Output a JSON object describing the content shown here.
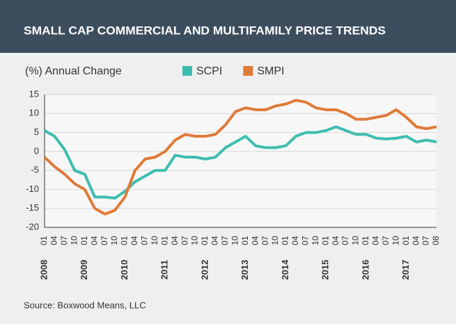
{
  "chart_data": {
    "type": "line",
    "title": "SMALL CAP COMMERCIAL AND MULTIFAMILY PRICE TRENDS",
    "y_label": "(%) Annual Change",
    "source": "Source: Boxwood Means, LLC",
    "categories": [
      "01",
      "04",
      "07",
      "10",
      "01",
      "04",
      "07",
      "10",
      "01",
      "04",
      "07",
      "10",
      "01",
      "04",
      "07",
      "10",
      "01",
      "04",
      "07",
      "10",
      "01",
      "04",
      "07",
      "10",
      "01",
      "04",
      "07",
      "10",
      "01",
      "04",
      "07",
      "10",
      "01",
      "04",
      "07",
      "10",
      "01",
      "04",
      "07",
      "08"
    ],
    "years": [
      "2008",
      "2009",
      "2010",
      "2011",
      "2012",
      "2013",
      "2014",
      "2015",
      "2016",
      "2017"
    ],
    "ylim": [
      -20,
      15
    ],
    "yticks": [
      15,
      10,
      5,
      0,
      -5,
      -10,
      -15,
      -20
    ],
    "grid": true,
    "series": [
      {
        "name": "SCPI",
        "color": "#3dbdb0",
        "values": [
          5.5,
          4,
          0.5,
          -5,
          -6,
          -12,
          -12,
          -12.3,
          -10.5,
          -8,
          -6.5,
          -5,
          -5,
          -1,
          -1.5,
          -1.5,
          -2,
          -1.5,
          1,
          2.5,
          4,
          1.5,
          1,
          1,
          1.5,
          4,
          5,
          5,
          5.5,
          6.5,
          5.5,
          4.5,
          4.5,
          3.5,
          3.3,
          3.5,
          4,
          2.5,
          3,
          2.5
        ]
      },
      {
        "name": "SMPI",
        "color": "#e07a38",
        "values": [
          -1.5,
          -4,
          -6,
          -8.5,
          -10,
          -15,
          -16.5,
          -15.5,
          -12,
          -5,
          -2,
          -1.5,
          0,
          3,
          4.5,
          4,
          4,
          4.5,
          7,
          10.5,
          11.5,
          11,
          11,
          12,
          12.5,
          13.5,
          13,
          11.5,
          11,
          11,
          10,
          8.5,
          8.5,
          9,
          9.5,
          11,
          9,
          6.5,
          6,
          6.5
        ]
      }
    ]
  }
}
